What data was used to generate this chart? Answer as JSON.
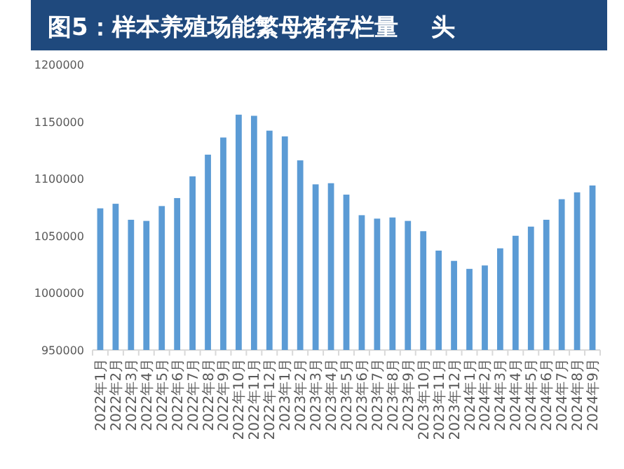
{
  "chart_data": {
    "type": "bar",
    "title": "图5：样本养殖场能繁母猪存栏量    头",
    "categories": [
      "2022年1月",
      "2022年2月",
      "2022年3月",
      "2022年4月",
      "2022年5月",
      "2022年6月",
      "2022年7月",
      "2022年8月",
      "2022年9月",
      "2022年10月",
      "2022年11月",
      "2022年12月",
      "2023年1月",
      "2023年2月",
      "2023年3月",
      "2023年4月",
      "2023年5月",
      "2023年6月",
      "2023年7月",
      "2023年8月",
      "2023年9月",
      "2023年10月",
      "2023年11月",
      "2023年12月",
      "2024年1月",
      "2024年2月",
      "2024年3月",
      "2024年4月",
      "2024年5月",
      "2024年6月",
      "2024年7月",
      "2024年8月",
      "2024年9月"
    ],
    "values": [
      1074000,
      1078000,
      1064000,
      1063000,
      1076000,
      1083000,
      1102000,
      1121000,
      1136000,
      1156000,
      1155000,
      1142000,
      1137000,
      1116000,
      1095000,
      1096000,
      1086000,
      1068000,
      1065000,
      1066000,
      1063000,
      1054000,
      1037000,
      1028000,
      1021000,
      1024000,
      1039000,
      1050000,
      1058000,
      1064000,
      1082000,
      1088000,
      1094000
    ],
    "color": "#5b9bd5",
    "ylim": [
      950000,
      1200000
    ],
    "yticks": [
      950000,
      1000000,
      1050000,
      1100000,
      1150000,
      1200000
    ]
  }
}
